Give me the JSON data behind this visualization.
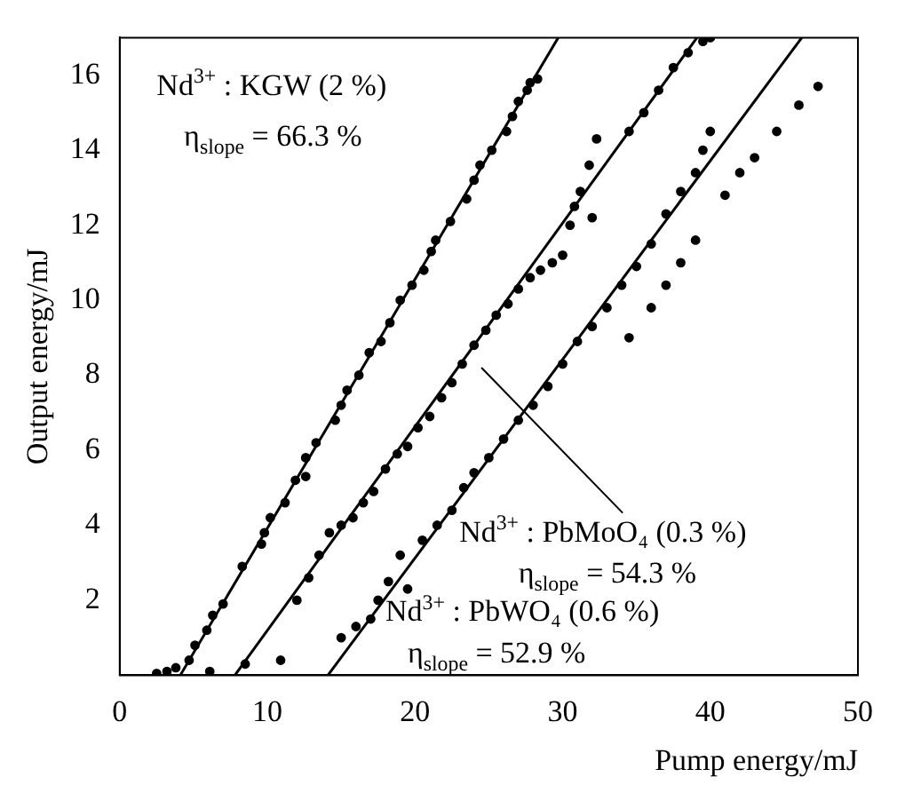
{
  "chart_data": {
    "type": "scatter",
    "xlabel": "Pump energy/mJ",
    "ylabel": "Output energy/mJ",
    "xlim": [
      0,
      50
    ],
    "ylim": [
      0,
      17
    ],
    "xticks": [
      0,
      10,
      20,
      30,
      40,
      50
    ],
    "yticks": [
      2,
      4,
      6,
      8,
      10,
      12,
      14,
      16
    ],
    "grid": false,
    "legend": false,
    "marker": "circle",
    "annotations": [
      "Nd$^{3+}$ : KGW (2 %)",
      "η$_{slope}$ = 66.3 %",
      "Nd$^{3+}$ : PbMoO₄ (0.3 %)",
      "η$_{slope}$ = 54.3 %",
      "Nd$^{3+}$ : PbWO₄ (0.6 %)",
      "η$_{slope}$ = 52.9 %"
    ],
    "series": [
      {
        "type": "scatter",
        "color": "#000000",
        "x": [
          2.5,
          3.2,
          3.8,
          4.7,
          5.1,
          5.9,
          6.3,
          7.0,
          6.1,
          8.3,
          9.6,
          9.8,
          10.2,
          11.2,
          11.9,
          12.6,
          12.6,
          13.3,
          14.6,
          15.0,
          15.4,
          16.2,
          16.9,
          17.7,
          18.3,
          19.0,
          19.8,
          20.6,
          21.1,
          21.4,
          22.4,
          23.5,
          24.0,
          24.4,
          25.2,
          26.2,
          26.6,
          27.0,
          27.6,
          27.8,
          28.3
        ],
        "values": [
          0.05,
          0.1,
          0.2,
          0.4,
          0.8,
          1.2,
          1.6,
          1.9,
          0.1,
          2.9,
          3.5,
          3.8,
          4.2,
          4.6,
          5.2,
          5.8,
          5.3,
          6.2,
          6.8,
          7.2,
          7.6,
          8.0,
          8.6,
          8.9,
          9.4,
          10.0,
          10.4,
          10.8,
          11.3,
          11.6,
          12.1,
          12.7,
          13.2,
          13.6,
          14.0,
          14.5,
          14.9,
          15.3,
          15.6,
          15.8,
          15.9
        ]
      },
      {
        "type": "scatter",
        "color": "#000000",
        "x": [
          8.5,
          10.9,
          12.0,
          12.8,
          13.5,
          14.2,
          15.0,
          15.8,
          16.5,
          17.2,
          18.0,
          18.8,
          19.5,
          20.2,
          21.0,
          21.8,
          22.5,
          23.2,
          24.0,
          24.8,
          25.5,
          26.3,
          27.0,
          27.8,
          28.5,
          29.3,
          30.0,
          30.5,
          30.8,
          31.2,
          31.8,
          32.0,
          32.3,
          34.5,
          35.5,
          36.5,
          37.5,
          38.5,
          39.5,
          40.0
        ],
        "values": [
          0.3,
          0.4,
          2.0,
          2.6,
          3.2,
          3.8,
          4.0,
          4.2,
          4.6,
          4.9,
          5.5,
          5.9,
          6.1,
          6.6,
          6.9,
          7.4,
          7.8,
          8.3,
          8.8,
          9.2,
          9.6,
          9.9,
          10.3,
          10.6,
          10.8,
          11.0,
          11.2,
          12.0,
          12.5,
          12.9,
          13.6,
          12.2,
          14.3,
          14.5,
          15.0,
          15.6,
          16.2,
          16.6,
          16.9,
          17.0
        ]
      },
      {
        "type": "scatter",
        "color": "#000000",
        "x": [
          15.0,
          16.0,
          17.0,
          17.5,
          18.2,
          19.0,
          19.5,
          20.5,
          21.5,
          22.5,
          23.3,
          24.0,
          25.0,
          26.0,
          27.0,
          28.0,
          29.0,
          30.0,
          31.0,
          32.0,
          33.0,
          34.0,
          35.0,
          36.0,
          37.0,
          38.0,
          39.0,
          39.5,
          40.0,
          34.5,
          36.0,
          37.0,
          38.0,
          39.0,
          41.0,
          42.0,
          43.0,
          44.5,
          46.0,
          47.3
        ],
        "values": [
          1.0,
          1.3,
          1.5,
          2.0,
          2.5,
          3.2,
          2.3,
          3.6,
          4.0,
          4.4,
          5.0,
          5.4,
          5.8,
          6.3,
          6.8,
          7.2,
          7.7,
          8.3,
          8.9,
          9.3,
          9.8,
          10.4,
          10.9,
          11.5,
          12.3,
          12.9,
          13.4,
          14.0,
          14.5,
          9.0,
          9.8,
          10.4,
          11.0,
          11.6,
          12.8,
          13.4,
          13.8,
          14.5,
          15.2,
          15.7
        ]
      },
      {
        "type": "line",
        "color": "#000000",
        "marker": "none",
        "x": [
          4.1,
          29.7
        ],
        "values": [
          0,
          17
        ]
      },
      {
        "type": "line",
        "color": "#000000",
        "marker": "none",
        "x": [
          7.8,
          39.1
        ],
        "values": [
          0,
          17
        ]
      },
      {
        "type": "line",
        "color": "#000000",
        "marker": "none",
        "x": [
          14.1,
          46.2
        ],
        "values": [
          0,
          17
        ]
      }
    ]
  }
}
